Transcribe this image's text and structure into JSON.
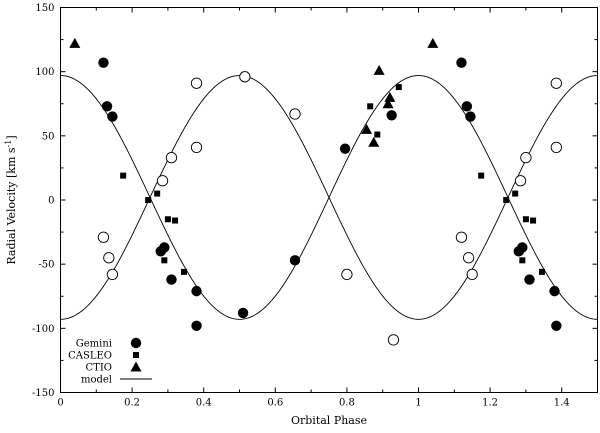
{
  "chart_data": {
    "type": "scatter",
    "xlabel": "Orbital Phase",
    "ylabel_main": "Radial Velocity [km s",
    "ylabel_sup": "-1",
    "ylabel_end": "]",
    "xlim": [
      0,
      1.5
    ],
    "ylim": [
      -150,
      150
    ],
    "xticks": [
      0,
      0.2,
      0.4,
      0.6,
      0.8,
      1,
      1.2,
      1.4
    ],
    "yticks": [
      -150,
      -100,
      -50,
      0,
      50,
      100,
      150
    ],
    "legend_position": "bottom-left",
    "legend": [
      {
        "label": "Gemini",
        "marker": "circle-filled"
      },
      {
        "label": "CASLEO",
        "marker": "square-filled"
      },
      {
        "label": "CTIO",
        "marker": "triangle-filled"
      },
      {
        "label": "model",
        "marker": "line"
      }
    ],
    "series": [
      {
        "marker": "circle-filled",
        "points": [
          [
            0.12,
            107
          ],
          [
            0.13,
            73
          ],
          [
            0.145,
            65
          ],
          [
            0.28,
            -40
          ],
          [
            0.29,
            -37
          ],
          [
            0.31,
            -62
          ],
          [
            0.38,
            -71
          ],
          [
            0.38,
            -98
          ],
          [
            0.51,
            -88
          ],
          [
            0.655,
            -47
          ],
          [
            0.795,
            40
          ],
          [
            0.925,
            66
          ],
          [
            1.12,
            107
          ],
          [
            1.135,
            73
          ],
          [
            1.145,
            65
          ],
          [
            1.28,
            -40
          ],
          [
            1.29,
            -37
          ],
          [
            1.31,
            -62
          ],
          [
            1.38,
            -71
          ],
          [
            1.385,
            -98
          ]
        ]
      },
      {
        "marker": "circle-open",
        "points": [
          [
            0.12,
            -29
          ],
          [
            0.135,
            -45
          ],
          [
            0.145,
            -58
          ],
          [
            0.285,
            15
          ],
          [
            0.31,
            33
          ],
          [
            0.38,
            91
          ],
          [
            0.38,
            41
          ],
          [
            0.515,
            96
          ],
          [
            0.655,
            67
          ],
          [
            0.8,
            -58
          ],
          [
            0.93,
            -109
          ],
          [
            1.12,
            -29
          ],
          [
            1.14,
            -45
          ],
          [
            1.15,
            -58
          ],
          [
            1.285,
            15
          ],
          [
            1.3,
            33
          ],
          [
            1.385,
            91
          ],
          [
            1.385,
            41
          ]
        ]
      },
      {
        "marker": "square-filled",
        "points": [
          [
            0.175,
            19
          ],
          [
            0.245,
            0
          ],
          [
            0.27,
            5
          ],
          [
            0.29,
            -47
          ],
          [
            0.3,
            -15
          ],
          [
            0.32,
            -16
          ],
          [
            0.345,
            -56
          ],
          [
            0.865,
            73
          ],
          [
            0.885,
            51
          ],
          [
            0.945,
            88
          ],
          [
            1.175,
            19
          ],
          [
            1.245,
            0
          ],
          [
            1.27,
            5
          ],
          [
            1.29,
            -47
          ],
          [
            1.3,
            -15
          ],
          [
            1.32,
            -16
          ],
          [
            1.345,
            -56
          ]
        ]
      },
      {
        "marker": "triangle-filled",
        "points": [
          [
            0.04,
            122
          ],
          [
            0.855,
            55
          ],
          [
            0.875,
            45
          ],
          [
            0.89,
            101
          ],
          [
            0.915,
            75
          ],
          [
            0.92,
            80
          ],
          [
            1.04,
            122
          ]
        ]
      }
    ],
    "model": {
      "gamma": 2,
      "k1": 95,
      "k2": 95,
      "phase_zero": 0.25
    }
  }
}
